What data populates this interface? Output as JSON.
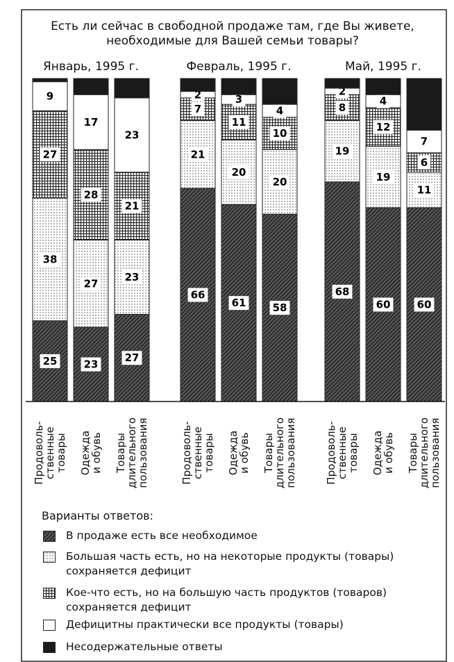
{
  "title": "Есть ли сейчас в свободной продаже там, где Вы живете,\nнеобходимые для Вашей семьи товары?",
  "chart_data": {
    "type": "bar",
    "stacked": true,
    "ylim": [
      0,
      100
    ],
    "groups": [
      {
        "label": "Январь, 1995 г.",
        "categories": [
          "Продоволь-\nственные\nтовары",
          "Одежда\nи обувь",
          "Товары\nдлительного\nпользования"
        ]
      },
      {
        "label": "Февраль, 1995 г.",
        "categories": [
          "Продоволь-\nственные\nтовары",
          "Одежда\nи обувь",
          "Товары\nдлительного\nпользования"
        ]
      },
      {
        "label": "Май, 1995 г.",
        "categories": [
          "Продоволь-\nственные\nтовары",
          "Одежда\nи обувь",
          "Товары\nдлительного\nпользования"
        ]
      }
    ],
    "legend_title": "Варианты ответов:",
    "series": [
      {
        "name": "В  продаже есть все необходимое",
        "color": "#2a2a2a",
        "pattern": "hatch",
        "values": [
          25,
          23,
          27,
          66,
          61,
          58,
          68,
          60,
          60
        ]
      },
      {
        "name": "Большая часть есть, но на некоторые продукты (товары)\nсохраняется дефицит",
        "color": "#555555",
        "pattern": "dots",
        "values": [
          38,
          27,
          23,
          21,
          20,
          20,
          19,
          19,
          11
        ]
      },
      {
        "name": "Кое-что есть, но на большую часть продуктов (товаров)\nсохраняется дефицит",
        "color": "#333333",
        "pattern": "grid",
        "values": [
          27,
          28,
          21,
          7,
          11,
          10,
          8,
          12,
          6
        ]
      },
      {
        "name": "Дефицитны практически все продукты (товары)",
        "color": "#ffffff",
        "pattern": "none",
        "values": [
          9,
          17,
          23,
          2,
          3,
          4,
          2,
          4,
          7
        ]
      },
      {
        "name": "Несодержательные ответы",
        "color": "#1a1a1a",
        "pattern": "none",
        "labels": false,
        "values": [
          1,
          5,
          6,
          4,
          5,
          8,
          3,
          5,
          16
        ]
      }
    ]
  }
}
